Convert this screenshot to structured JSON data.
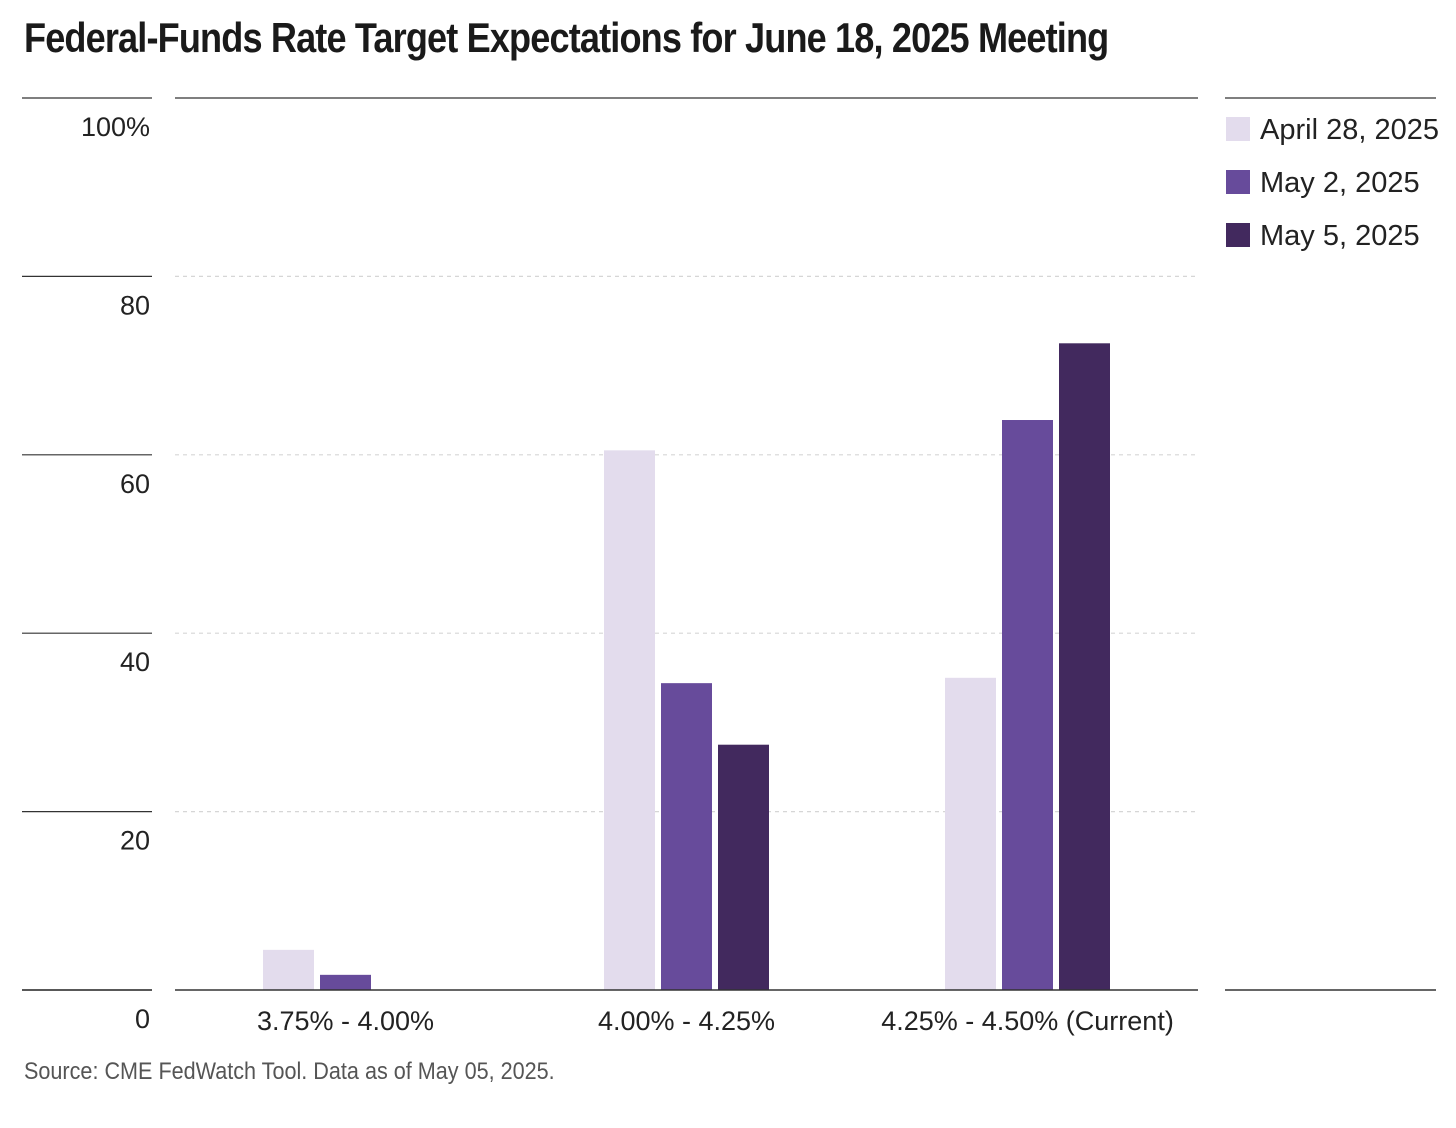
{
  "title": "Federal-Funds Rate Target Expectations for June 18, 2025 Meeting",
  "source": "Source: CME FedWatch Tool. Data as of May 05, 2025.",
  "chart_data": {
    "type": "bar",
    "title": "Federal-Funds Rate Target Expectations for June 18, 2025 Meeting",
    "categories": [
      "3.75% - 4.00%",
      "4.00% - 4.25%",
      "4.25% - 4.50% (Current)"
    ],
    "series": [
      {
        "name": "April 28, 2025",
        "color": "#e3dced",
        "values": [
          4.5,
          60.5,
          35.0
        ]
      },
      {
        "name": "May 2, 2025",
        "color": "#674b9b",
        "values": [
          1.7,
          34.4,
          63.9
        ]
      },
      {
        "name": "May 5, 2025",
        "color": "#42295e",
        "values": [
          0,
          27.5,
          72.5
        ]
      }
    ],
    "ylim": [
      0,
      100
    ],
    "yticks": [
      {
        "value": 100,
        "label": "100%"
      },
      {
        "value": 80,
        "label": "80"
      },
      {
        "value": 60,
        "label": "60"
      },
      {
        "value": 40,
        "label": "40"
      },
      {
        "value": 20,
        "label": "20"
      },
      {
        "value": 0,
        "label": "0"
      }
    ],
    "grid": true,
    "legend": "top-right"
  }
}
